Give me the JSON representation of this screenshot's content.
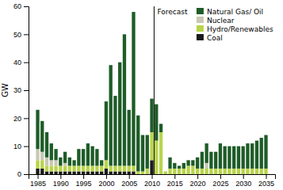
{
  "chart_data": {
    "type": "bar",
    "stacked": true,
    "x": [
      1985,
      1986,
      1987,
      1988,
      1989,
      1990,
      1991,
      1992,
      1993,
      1994,
      1995,
      1996,
      1997,
      1998,
      1999,
      2000,
      2001,
      2002,
      2003,
      2004,
      2005,
      2006,
      2007,
      2008,
      2009,
      2010,
      2011,
      2012,
      2013,
      2014,
      2015,
      2016,
      2017,
      2018,
      2019,
      2020,
      2021,
      2022,
      2023,
      2024,
      2025,
      2026,
      2027,
      2028,
      2029,
      2030,
      2031,
      2032,
      2033,
      2034,
      2035
    ],
    "series": [
      {
        "name": "Natural Gas/ Oil",
        "color": "#1e5c28",
        "values": [
          14,
          11,
          9,
          6,
          4,
          3,
          4,
          3,
          2,
          6,
          6,
          8,
          7,
          6,
          2,
          21,
          36,
          25,
          37,
          47,
          20,
          55,
          20,
          13,
          12,
          12,
          13,
          3,
          0,
          4,
          2,
          1,
          2,
          2,
          2,
          4,
          6,
          7,
          6,
          6,
          9,
          8,
          8,
          8,
          8,
          8,
          9,
          9,
          10,
          11,
          12
        ]
      },
      {
        "name": "Nuclear",
        "color": "#c8c8b4",
        "values": [
          4,
          3,
          3,
          2,
          2,
          0,
          1,
          0,
          0,
          0,
          0,
          0,
          0,
          0,
          0,
          0,
          0,
          0,
          0,
          0,
          0,
          0,
          0,
          0,
          0,
          0,
          0,
          0,
          0,
          0,
          0,
          0,
          0,
          0,
          0,
          0,
          0,
          2,
          0,
          0,
          0,
          0,
          0,
          0,
          0,
          0,
          0,
          0,
          0,
          0,
          0
        ]
      },
      {
        "name": "Hydro/Renewables",
        "color": "#b8d44a",
        "values": [
          3,
          3,
          2,
          2,
          2,
          2,
          2,
          2,
          2,
          2,
          2,
          2,
          2,
          2,
          2,
          3,
          2,
          2,
          2,
          2,
          2,
          2,
          1,
          1,
          2,
          10,
          12,
          15,
          1,
          2,
          2,
          2,
          2,
          3,
          3,
          2,
          2,
          2,
          2,
          2,
          2,
          2,
          2,
          2,
          2,
          2,
          2,
          2,
          2,
          2,
          2
        ]
      },
      {
        "name": "Coal",
        "color": "#1a1a1a",
        "values": [
          2,
          2,
          1,
          1,
          1,
          1,
          1,
          1,
          1,
          1,
          1,
          1,
          1,
          1,
          1,
          2,
          1,
          1,
          1,
          1,
          1,
          1,
          0,
          0,
          0,
          5,
          0,
          0,
          0,
          0,
          0,
          0,
          0,
          0,
          0,
          0,
          0,
          0,
          0,
          0,
          0,
          0,
          0,
          0,
          0,
          0,
          0,
          0,
          0,
          0,
          0
        ]
      }
    ],
    "xlim": [
      1983,
      2037
    ],
    "xticks": [
      1985,
      1990,
      1995,
      2000,
      2005,
      2010,
      2015,
      2020,
      2025,
      2030,
      2035
    ],
    "ylim": [
      0,
      60
    ],
    "yticks": [
      0,
      10,
      20,
      30,
      40,
      50,
      60
    ],
    "ylabel": "GW",
    "grid": false,
    "legend": "upper right",
    "annotations": [
      {
        "text": "Forecast",
        "x": 2010.5
      }
    ]
  }
}
